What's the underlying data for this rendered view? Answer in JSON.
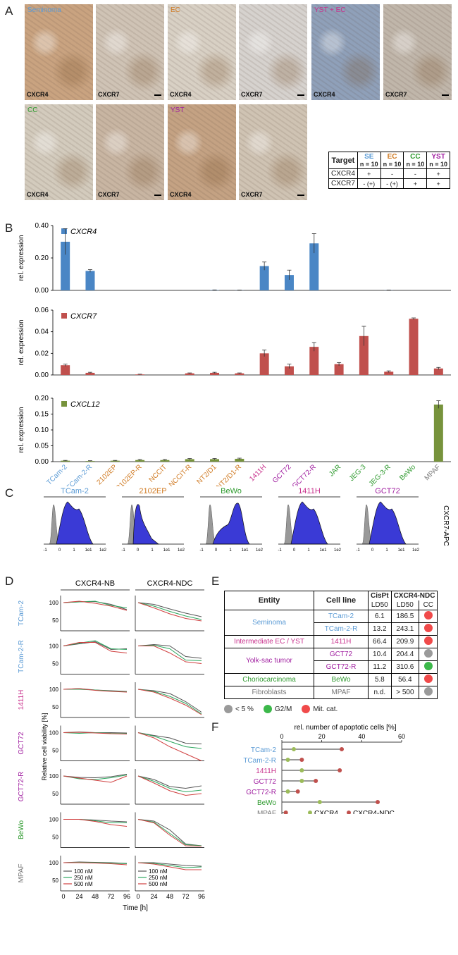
{
  "colors": {
    "se": "#5b9bd5",
    "ec": "#d07a22",
    "yst": "#a01fa0",
    "cc": "#2e9a2e",
    "gray": "#777777",
    "mixed": "#c8308c",
    "cxcr4": "#4a86c5",
    "cxcr7": "#c0504d",
    "cxcl12": "#77933c",
    "hist": "#3a3ad6",
    "dot_red": "#f04a4a",
    "dot_green": "#3cb84a",
    "dot_gray": "#9a9a9a"
  },
  "panelA": {
    "label": "A",
    "tiles": [
      {
        "cell": "Seminoma",
        "marker": "CXCR4",
        "color": "se"
      },
      {
        "cell": "",
        "marker": "CXCR7",
        "color": "se"
      },
      {
        "cell": "EC",
        "marker": "CXCR4",
        "color": "ec"
      },
      {
        "cell": "",
        "marker": "CXCR7",
        "color": "ec"
      },
      {
        "cell": "YST + EC",
        "marker": "CXCR4",
        "color": "mixed"
      },
      {
        "cell": "",
        "marker": "CXCR7",
        "color": "mixed"
      },
      {
        "cell": "CC",
        "marker": "CXCR4",
        "color": "cc"
      },
      {
        "cell": "",
        "marker": "CXCR7",
        "color": "cc"
      },
      {
        "cell": "YST",
        "marker": "CXCR4",
        "color": "yst"
      },
      {
        "cell": "",
        "marker": "CXCR7",
        "color": "yst"
      }
    ],
    "table": {
      "header": "Target",
      "cols": [
        {
          "name": "SE",
          "n": "n = 10"
        },
        {
          "name": "EC",
          "n": "n = 10"
        },
        {
          "name": "CC",
          "n": "n = 10"
        },
        {
          "name": "YST",
          "n": "n = 10"
        }
      ],
      "rows": [
        {
          "target": "CXCR4",
          "vals": [
            "+",
            "-",
            "-",
            "+"
          ]
        },
        {
          "target": "CXCR7",
          "vals": [
            "- (+)",
            "- (+)",
            "+",
            "+"
          ]
        }
      ]
    }
  },
  "panelB": {
    "label": "B",
    "ylabel": "rel. expression",
    "cell_lines": [
      "TCam-2",
      "TCam-2-R",
      "2102EP",
      "2102EP-R",
      "NCCIT",
      "NCCIT-R",
      "NT2/D1",
      "NT2/D1-R",
      "1411H",
      "GCT72",
      "GCT72-R",
      "JAR",
      "JEG-3",
      "JEG-3-R",
      "BeWo",
      "MPAF"
    ],
    "cell_colors": [
      "se",
      "se",
      "ec",
      "ec",
      "ec",
      "ec",
      "ec",
      "ec",
      "mixed",
      "yst",
      "yst",
      "cc",
      "cc",
      "cc",
      "cc",
      "gray"
    ]
  },
  "chart_data": [
    {
      "type": "bar",
      "title": "CXCR4",
      "ylabel": "rel. expression",
      "ylim": [
        0,
        0.4
      ],
      "yticks": [
        "0.00",
        "0.20",
        "0.40"
      ],
      "categories": [
        "TCam-2",
        "TCam-2-R",
        "2102EP",
        "2102EP-R",
        "NCCIT",
        "NCCIT-R",
        "NT2/D1",
        "NT2/D1-R",
        "1411H",
        "GCT72",
        "GCT72-R",
        "JAR",
        "JEG-3",
        "JEG-3-R",
        "BeWo",
        "MPAF"
      ],
      "values": [
        0.3,
        0.12,
        0,
        0,
        0,
        0,
        0.002,
        0.001,
        0.15,
        0.095,
        0.29,
        0,
        0,
        0.001,
        0,
        0
      ],
      "errors": [
        0.08,
        0.008,
        0,
        0,
        0,
        0,
        0.001,
        0.001,
        0.025,
        0.03,
        0.06,
        0,
        0,
        0.001,
        0,
        0
      ]
    },
    {
      "type": "bar",
      "title": "CXCR7",
      "ylabel": "rel. expression",
      "ylim": [
        0,
        0.06
      ],
      "yticks": [
        "0.00",
        "0.02",
        "0.04",
        "0.06"
      ],
      "categories": [
        "TCam-2",
        "TCam-2-R",
        "2102EP",
        "2102EP-R",
        "NCCIT",
        "NCCIT-R",
        "NT2/D1",
        "NT2/D1-R",
        "1411H",
        "GCT72",
        "GCT72-R",
        "JAR",
        "JEG-3",
        "JEG-3-R",
        "BeWo",
        "MPAF"
      ],
      "values": [
        0.009,
        0.002,
        0,
        0.0005,
        0,
        0.0015,
        0.002,
        0.0015,
        0.02,
        0.008,
        0.026,
        0.01,
        0.036,
        0.003,
        0.052,
        0.006
      ],
      "errors": [
        0.001,
        0.0005,
        0,
        0.0002,
        0,
        0.0004,
        0.0005,
        0.0004,
        0.003,
        0.002,
        0.004,
        0.0015,
        0.009,
        0.0008,
        0.0008,
        0.001
      ]
    },
    {
      "type": "bar",
      "title": "CXCL12",
      "ylabel": "rel. expression",
      "ylim": [
        0,
        0.2
      ],
      "yticks": [
        "0.00",
        "0.05",
        "0.10",
        "0.15",
        "0.20"
      ],
      "categories": [
        "TCam-2",
        "TCam-2-R",
        "2102EP",
        "2102EP-R",
        "NCCIT",
        "NCCIT-R",
        "NT2/D1",
        "NT2/D1-R",
        "1411H",
        "GCT72",
        "GCT72-R",
        "JAR",
        "JEG-3",
        "JEG-3-R",
        "BeWo",
        "MPAF"
      ],
      "values": [
        0.003,
        0.002,
        0.003,
        0.005,
        0.005,
        0.008,
        0.008,
        0.009,
        0,
        0,
        0,
        0,
        0,
        0,
        0,
        0.18
      ],
      "errors": [
        0.001,
        0.001,
        0.001,
        0.002,
        0.002,
        0.002,
        0.002,
        0.002,
        0,
        0,
        0,
        0,
        0,
        0,
        0,
        0.012
      ]
    },
    {
      "type": "lollipop",
      "title": "rel. number of apoptotic cells [%]",
      "xlim": [
        0,
        60
      ],
      "xticks": [
        "0",
        "20",
        "40",
        "60"
      ],
      "categories": [
        "TCam-2",
        "TCam-2-R",
        "1411H",
        "GCT72",
        "GCT72-R",
        "BeWo",
        "MPAF"
      ],
      "category_colors": [
        "se",
        "se",
        "mixed",
        "yst",
        "yst",
        "cc",
        "gray"
      ],
      "series": [
        {
          "name": "CXCR4",
          "values": [
            6,
            3,
            10,
            10,
            3,
            19,
            2
          ]
        },
        {
          "name": "CXCR4-NDC",
          "values": [
            30,
            10,
            29,
            17,
            8,
            48,
            2
          ]
        }
      ]
    }
  ],
  "panelC": {
    "label": "C",
    "side_label": "CXCR7-APC",
    "axis_ticks": [
      "-1",
      "0",
      "1",
      "1e1",
      "1e2"
    ],
    "histograms": [
      {
        "name": "TCam-2",
        "color": "se",
        "shape": "high"
      },
      {
        "name": "2102EP",
        "color": "ec",
        "shape": "low"
      },
      {
        "name": "BeWo",
        "color": "cc",
        "shape": "bimodal"
      },
      {
        "name": "1411H",
        "color": "mixed",
        "shape": "high"
      },
      {
        "name": "GCT72",
        "color": "yst",
        "shape": "high"
      }
    ]
  },
  "panelD": {
    "label": "D",
    "col_titles": [
      "CXCR4-NB",
      "CXCR4-NDC"
    ],
    "ylabel": "Relative cell viability [%]",
    "xlabel": "Time [h]",
    "xticks": [
      "0",
      "24",
      "48",
      "72",
      "96"
    ],
    "yticks": [
      "50",
      "100"
    ],
    "rows": [
      {
        "name": "TCam-2",
        "color": "se"
      },
      {
        "name": "TCam-2-R",
        "color": "se"
      },
      {
        "name": "1411H",
        "color": "mixed"
      },
      {
        "name": "GCT72",
        "color": "yst"
      },
      {
        "name": "GCT72-R",
        "color": "yst"
      },
      {
        "name": "BeWo",
        "color": "cc"
      },
      {
        "name": "MPAF",
        "color": "gray"
      }
    ],
    "legend": [
      "100 nM",
      "250 nM",
      "500 nM"
    ]
  },
  "panelE": {
    "label": "E",
    "headers": {
      "entity": "Entity",
      "cell_line": "Cell line",
      "cispt": "CisPt",
      "ndc": "CXCR4-NDC",
      "ld50": "LD50",
      "cc": "CC"
    },
    "rows": [
      {
        "entity": "Seminoma",
        "color": "se",
        "line": "TCam-2",
        "cispt": "6.1",
        "ndc": "186.5",
        "dot": "red",
        "span": 2
      },
      {
        "entity": "",
        "color": "se",
        "line": "TCam-2-R",
        "cispt": "13.2",
        "ndc": "243.1",
        "dot": "red",
        "span": 0
      },
      {
        "entity": "Intermediate EC / YST",
        "color": "mixed",
        "line": "1411H",
        "cispt": "66.4",
        "ndc": "209.9",
        "dot": "red",
        "span": 1
      },
      {
        "entity": "Yolk-sac tumor",
        "color": "yst",
        "line": "GCT72",
        "cispt": "10.4",
        "ndc": "204.4",
        "dot": "gray",
        "span": 2
      },
      {
        "entity": "",
        "color": "yst",
        "line": "GCT72-R",
        "cispt": "11.2",
        "ndc": "310.6",
        "dot": "green",
        "span": 0
      },
      {
        "entity": "Choriocarcinoma",
        "color": "cc",
        "line": "BeWo",
        "cispt": "5.8",
        "ndc": "56.4",
        "dot": "red",
        "span": 1
      },
      {
        "entity": "Fibroblasts",
        "color": "gray",
        "line": "MPAF",
        "cispt": "n.d.",
        "ndc": "> 500",
        "dot": "gray",
        "span": 1
      }
    ],
    "legend": [
      {
        "dot": "gray",
        "label": "< 5 %"
      },
      {
        "dot": "green",
        "label": "G2/M"
      },
      {
        "dot": "red",
        "label": "Mit. cat."
      }
    ]
  },
  "panelF": {
    "label": "F"
  }
}
